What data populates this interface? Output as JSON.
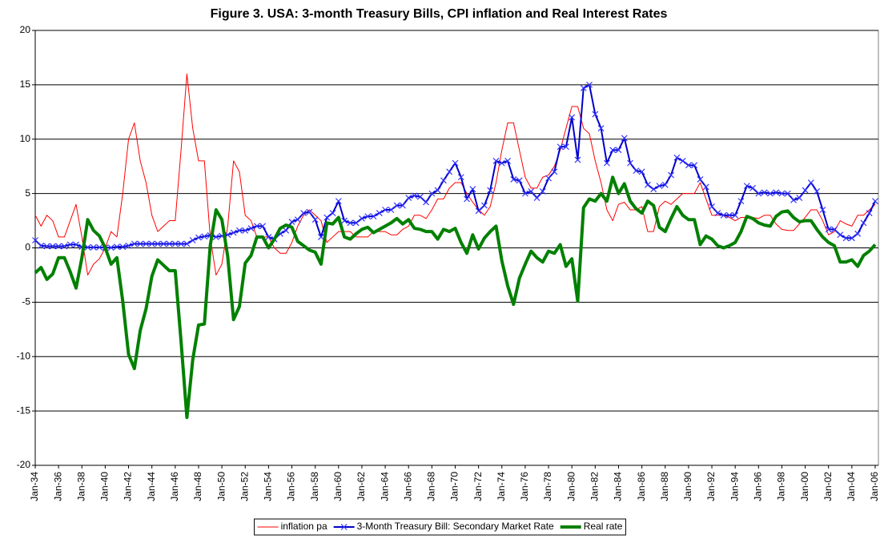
{
  "chart_data": {
    "type": "line",
    "title": "Figure 3. USA: 3-month Treasury Bills, CPI inflation and Real Interest Rates",
    "categories": [
      "Jan-34",
      null,
      null,
      null,
      "Jan-36",
      null,
      null,
      null,
      "Jan-38",
      null,
      null,
      null,
      "Jan-40",
      null,
      null,
      null,
      "Jan-42",
      null,
      null,
      null,
      "Jan-44",
      null,
      null,
      null,
      "Jan-46",
      null,
      null,
      null,
      "Jan-48",
      null,
      null,
      null,
      "Jan-50",
      null,
      null,
      null,
      "Jan-52",
      null,
      null,
      null,
      "Jan-54",
      null,
      null,
      null,
      "Jan-56",
      null,
      null,
      null,
      "Jan-58",
      null,
      null,
      null,
      "Jan-60",
      null,
      null,
      null,
      "Jan-62",
      null,
      null,
      null,
      "Jan-64",
      null,
      null,
      null,
      "Jan-66",
      null,
      null,
      null,
      "Jan-68",
      null,
      null,
      null,
      "Jan-70",
      null,
      null,
      null,
      "Jan-72",
      null,
      null,
      null,
      "Jan-74",
      null,
      null,
      null,
      "Jan-76",
      null,
      null,
      null,
      "Jan-78",
      null,
      null,
      null,
      "Jan-80",
      null,
      null,
      null,
      "Jan-82",
      null,
      null,
      null,
      "Jan-84",
      null,
      null,
      null,
      "Jan-86",
      null,
      null,
      null,
      "Jan-88",
      null,
      null,
      null,
      "Jan-90",
      null,
      null,
      null,
      "Jan-92",
      null,
      null,
      null,
      "Jan-94",
      null,
      null,
      null,
      "Jan-96",
      null,
      null,
      null,
      "Jan-98",
      null,
      null,
      null,
      "Jan-00",
      null,
      null,
      null,
      "Jan-02",
      null,
      null,
      null,
      "Jan-04",
      null,
      null,
      null,
      "Jan-06"
    ],
    "series": [
      {
        "name": "inflation pa",
        "color": "#ff0000",
        "width": 1,
        "values": [
          3,
          2,
          3,
          2.5,
          1,
          1,
          2.5,
          4,
          1,
          -2.5,
          -1.5,
          -1,
          0,
          1.5,
          1,
          5,
          10,
          11.5,
          8,
          6,
          3,
          1.5,
          2,
          2.5,
          2.5,
          9,
          16,
          11,
          8,
          8,
          1,
          -2.5,
          -1.5,
          2,
          8,
          7,
          3,
          2.5,
          1,
          1,
          1,
          0,
          -0.5,
          -0.5,
          0.5,
          2,
          3,
          3.5,
          3,
          2.5,
          0.5,
          1,
          1.5,
          1.5,
          1.5,
          1,
          1,
          1,
          1.5,
          1.5,
          1.5,
          1.2,
          1.2,
          1.7,
          2,
          3,
          3,
          2.7,
          3.5,
          4.5,
          4.5,
          5.5,
          6,
          6,
          5,
          4.2,
          3.5,
          3,
          3.8,
          6,
          9,
          11.5,
          11.5,
          9,
          6.5,
          5.5,
          5.5,
          6.5,
          6.7,
          7.5,
          9,
          11,
          13,
          13,
          11,
          10.5,
          8,
          6,
          3.5,
          2.5,
          4,
          4.2,
          3.5,
          3.5,
          3.8,
          1.5,
          1.5,
          3.8,
          4.3,
          4,
          4.5,
          5,
          5,
          5,
          6,
          4.5,
          3,
          3,
          3,
          2.8,
          2.5,
          2.8,
          2.8,
          2.8,
          2.7,
          3,
          3,
          2.2,
          1.7,
          1.6,
          1.6,
          2.2,
          2.8,
          3.5,
          3.5,
          2.5,
          1.2,
          1.5,
          2.5,
          2.2,
          2,
          3,
          3,
          3.5,
          4
        ]
      },
      {
        "name": "3-Month Treasury Bill: Secondary Market Rate",
        "color": "#0000cc",
        "width": 2,
        "marker": "x",
        "values": [
          0.7,
          0.2,
          0.15,
          0.15,
          0.15,
          0.15,
          0.3,
          0.3,
          0.1,
          0.05,
          0.05,
          0.05,
          0.02,
          0.02,
          0.1,
          0.1,
          0.2,
          0.37,
          0.37,
          0.37,
          0.37,
          0.37,
          0.37,
          0.37,
          0.37,
          0.37,
          0.37,
          0.7,
          0.95,
          1.05,
          1.15,
          1.0,
          1.1,
          1.2,
          1.4,
          1.6,
          1.6,
          1.8,
          2.0,
          2.0,
          1.0,
          0.8,
          1.3,
          1.6,
          2.4,
          2.6,
          3.2,
          3.3,
          2.6,
          1.0,
          2.8,
          3.2,
          4.3,
          2.5,
          2.3,
          2.3,
          2.7,
          2.9,
          2.9,
          3.2,
          3.5,
          3.5,
          3.9,
          3.9,
          4.6,
          4.8,
          4.7,
          4.2,
          5.0,
          5.3,
          6.2,
          7.0,
          7.8,
          6.5,
          4.5,
          5.4,
          3.4,
          3.9,
          5.3,
          8.0,
          7.8,
          8.0,
          6.3,
          6.2,
          5.0,
          5.2,
          4.6,
          5.2,
          6.4,
          7.0,
          9.3,
          9.3,
          12.0,
          8.1,
          14.7,
          15.0,
          12.3,
          11.0,
          7.8,
          9.0,
          9.0,
          10.1,
          7.8,
          7.1,
          7.0,
          5.8,
          5.4,
          5.7,
          5.8,
          6.7,
          8.3,
          8.0,
          7.6,
          7.6,
          6.3,
          5.6,
          3.8,
          3.2,
          3.0,
          3.0,
          3.0,
          4.3,
          5.7,
          5.5,
          5.0,
          5.1,
          5.0,
          5.1,
          5.0,
          5.0,
          4.4,
          4.6,
          5.3,
          6.0,
          5.2,
          3.5,
          1.7,
          1.7,
          1.2,
          0.9,
          0.9,
          1.3,
          2.3,
          3.2,
          4.3
        ]
      },
      {
        "name": "Real rate",
        "color": "#008000",
        "width": 4,
        "values": [
          -2.3,
          -1.8,
          -2.9,
          -2.4,
          -0.9,
          -0.9,
          -2.2,
          -3.7,
          -0.9,
          2.6,
          1.6,
          1.1,
          0,
          -1.5,
          -0.9,
          -4.9,
          -9.8,
          -11.1,
          -7.6,
          -5.6,
          -2.6,
          -1.1,
          -1.6,
          -2.1,
          -2.1,
          -8.6,
          -15.6,
          -10.3,
          -7.1,
          -7.0,
          0.2,
          3.5,
          2.6,
          -0.8,
          -6.6,
          -5.4,
          -1.4,
          -0.7,
          1.0,
          1.0,
          0,
          0.8,
          1.8,
          2.1,
          1.9,
          0.6,
          0.2,
          -0.2,
          -0.4,
          -1.5,
          2.3,
          2.2,
          2.8,
          1.0,
          0.8,
          1.3,
          1.7,
          1.9,
          1.4,
          1.7,
          2.0,
          2.3,
          2.7,
          2.2,
          2.6,
          1.8,
          1.7,
          1.5,
          1.5,
          0.8,
          1.7,
          1.5,
          1.8,
          0.5,
          -0.5,
          1.2,
          -0.1,
          0.9,
          1.5,
          2.0,
          -1.2,
          -3.5,
          -5.2,
          -2.8,
          -1.5,
          -0.3,
          -0.9,
          -1.3,
          -0.3,
          -0.5,
          0.3,
          -1.7,
          -1.0,
          -4.9,
          3.7,
          4.5,
          4.3,
          5.0,
          4.3,
          6.5,
          5.0,
          5.9,
          4.3,
          3.6,
          3.2,
          4.3,
          3.9,
          1.9,
          1.5,
          2.7,
          3.8,
          3.0,
          2.6,
          2.6,
          0.3,
          1.1,
          0.8,
          0.2,
          0,
          0.2,
          0.5,
          1.5,
          2.9,
          2.7,
          2.3,
          2.1,
          2.0,
          2.9,
          3.3,
          3.4,
          2.8,
          2.4,
          2.5,
          2.5,
          1.7,
          1.0,
          0.5,
          0.2,
          -1.3,
          -1.3,
          -1.1,
          -1.7,
          -0.7,
          -0.3,
          0.3
        ]
      }
    ],
    "ylim": [
      -20,
      20
    ],
    "yticks": [
      -20,
      -15,
      -10,
      -5,
      0,
      5,
      10,
      15,
      20
    ],
    "grid": true,
    "legend_position": "bottom"
  }
}
